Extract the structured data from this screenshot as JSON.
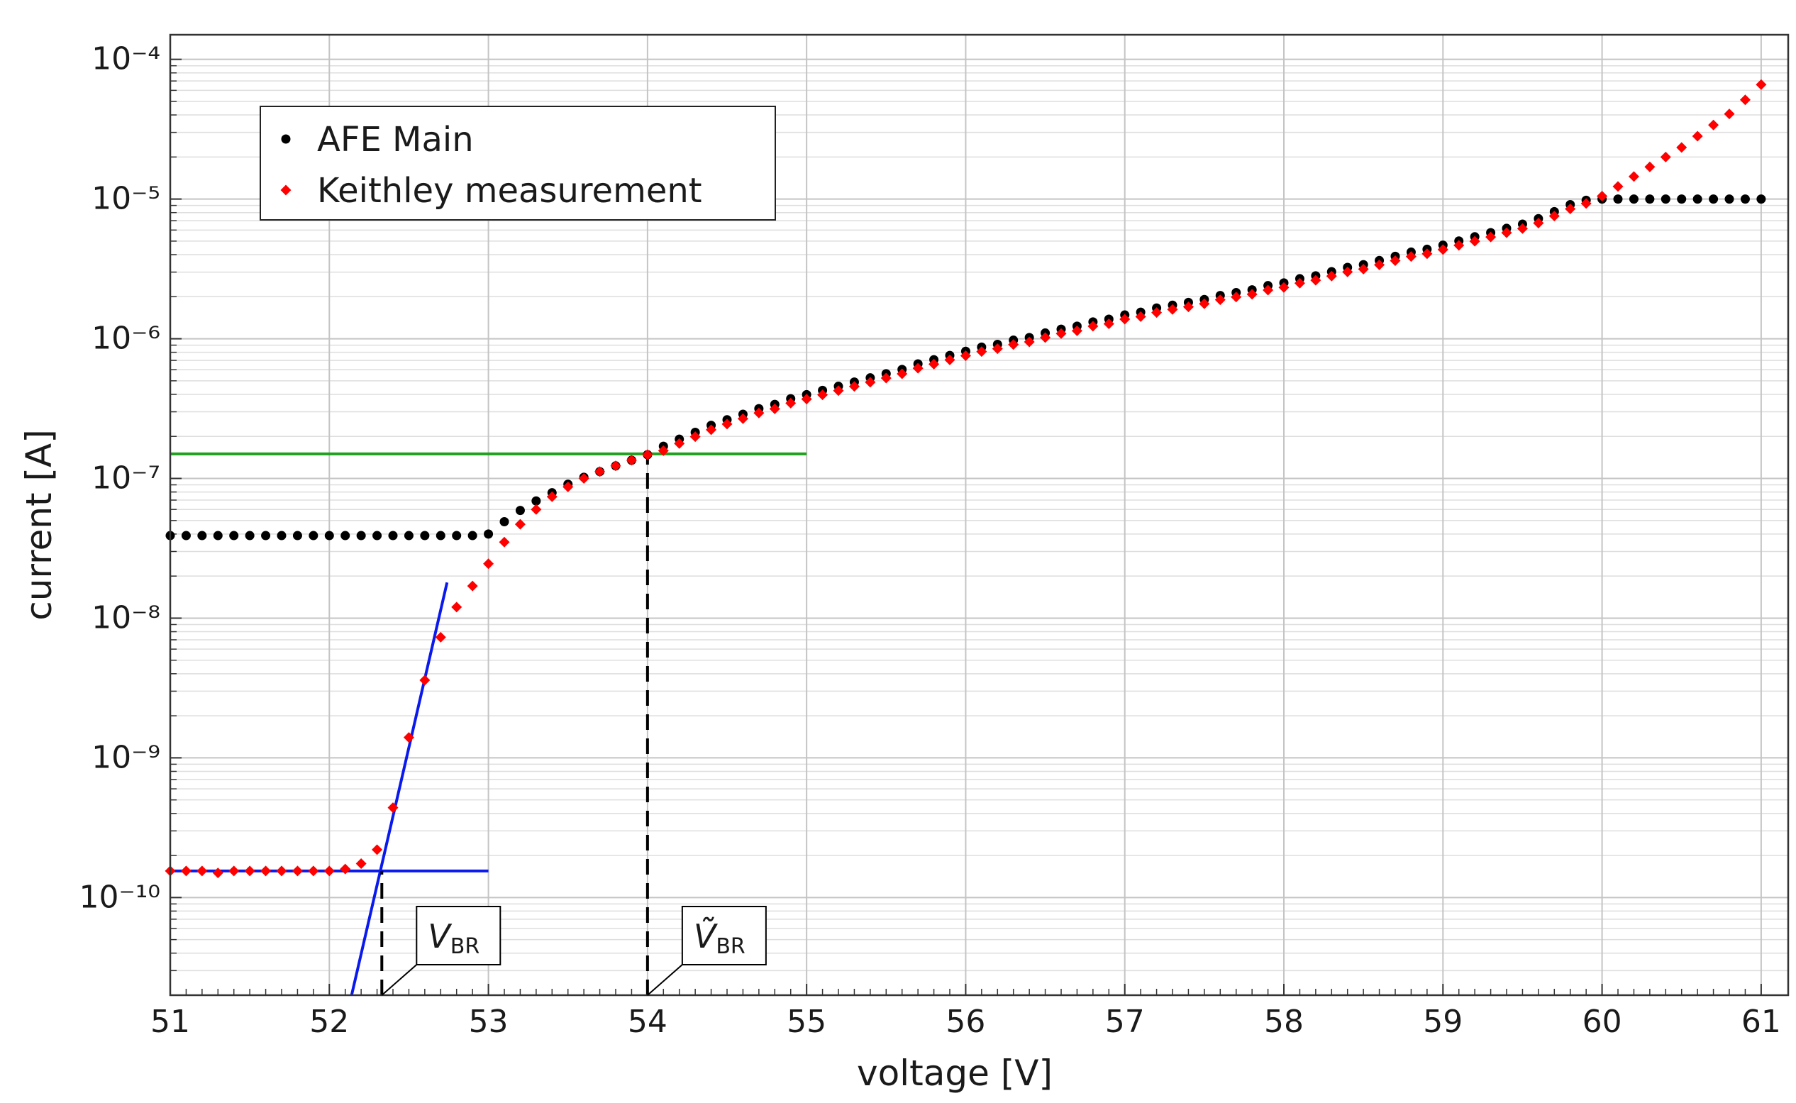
{
  "chart_data": {
    "type": "scatter",
    "x_label": "voltage [V]",
    "y_label": "current [A]",
    "log_y": true,
    "grid": true,
    "legend_position": "upper left",
    "xlim": [
      51,
      61.17
    ],
    "xticks": [
      51,
      52,
      53,
      54,
      55,
      56,
      57,
      58,
      59,
      60,
      61
    ],
    "ylim": [
      2e-11,
      0.00015
    ],
    "yticks": [
      {
        "value": 1e-10,
        "label": "10⁻¹⁰"
      },
      {
        "value": 1e-09,
        "label": "10⁻⁹"
      },
      {
        "value": 1e-08,
        "label": "10⁻⁸"
      },
      {
        "value": 1e-07,
        "label": "10⁻⁷"
      },
      {
        "value": 1e-06,
        "label": "10⁻⁶"
      },
      {
        "value": 1e-05,
        "label": "10⁻⁵"
      },
      {
        "value": 0.0001,
        "label": "10⁻⁴"
      }
    ],
    "x": [
      51.0,
      51.1,
      51.2,
      51.3,
      51.4,
      51.5,
      51.6,
      51.7,
      51.8,
      51.9,
      52.0,
      52.1,
      52.2,
      52.3,
      52.4,
      52.5,
      52.6,
      52.7,
      52.8,
      52.9,
      53.0,
      53.1,
      53.2,
      53.3,
      53.4,
      53.5,
      53.6,
      53.7,
      53.8,
      53.9,
      54.0,
      54.1,
      54.2,
      54.3,
      54.4,
      54.5,
      54.6,
      54.7,
      54.8,
      54.9,
      55.0,
      55.1,
      55.2,
      55.3,
      55.4,
      55.5,
      55.6,
      55.7,
      55.8,
      55.9,
      56.0,
      56.1,
      56.2,
      56.3,
      56.4,
      56.5,
      56.6,
      56.7,
      56.8,
      56.9,
      57.0,
      57.1,
      57.2,
      57.3,
      57.4,
      57.5,
      57.6,
      57.7,
      57.8,
      57.9,
      58.0,
      58.1,
      58.2,
      58.3,
      58.4,
      58.5,
      58.6,
      58.7,
      58.8,
      58.9,
      59.0,
      59.1,
      59.2,
      59.3,
      59.4,
      59.5,
      59.6,
      59.7,
      59.8,
      59.9,
      60.0,
      60.1,
      60.2,
      60.3,
      60.4,
      60.5,
      60.6,
      60.7,
      60.8,
      60.9,
      61.0
    ],
    "series": [
      {
        "name": "AFE Main",
        "color": "#000000",
        "marker": "circle",
        "values": [
          3.9e-08,
          3.9e-08,
          3.9e-08,
          3.9e-08,
          3.9e-08,
          3.9e-08,
          3.9e-08,
          3.9e-08,
          3.9e-08,
          3.9e-08,
          3.9e-08,
          3.9e-08,
          3.9e-08,
          3.9e-08,
          3.9e-08,
          3.9e-08,
          3.9e-08,
          3.9e-08,
          3.9e-08,
          3.9e-08,
          4e-08,
          4.9e-08,
          5.9e-08,
          6.9e-08,
          7.9e-08,
          9.1e-08,
          1.02e-07,
          1.12e-07,
          1.23e-07,
          1.35e-07,
          1.48e-07,
          1.7e-07,
          1.91e-07,
          2.14e-07,
          2.4e-07,
          2.63e-07,
          2.88e-07,
          3.16e-07,
          3.39e-07,
          3.72e-07,
          3.98e-07,
          4.27e-07,
          4.57e-07,
          4.9e-07,
          5.25e-07,
          5.62e-07,
          6.03e-07,
          6.61e-07,
          7.08e-07,
          7.59e-07,
          8.13e-07,
          8.71e-07,
          9.12e-07,
          9.77e-07,
          1.02e-06,
          1.1e-06,
          1.17e-06,
          1.23e-06,
          1.32e-06,
          1.38e-06,
          1.48e-06,
          1.55e-06,
          1.66e-06,
          1.74e-06,
          1.82e-06,
          1.91e-06,
          2.04e-06,
          2.14e-06,
          2.24e-06,
          2.4e-06,
          2.51e-06,
          2.69e-06,
          2.82e-06,
          3.02e-06,
          3.24e-06,
          3.39e-06,
          3.63e-06,
          3.89e-06,
          4.17e-06,
          4.37e-06,
          4.68e-06,
          5.01e-06,
          5.37e-06,
          5.75e-06,
          6.17e-06,
          6.61e-06,
          7.24e-06,
          8.13e-06,
          9.12e-06,
          9.8e-06,
          1e-05,
          1e-05,
          1e-05,
          1e-05,
          1e-05,
          1e-05,
          1e-05,
          1e-05,
          1e-05,
          1e-05,
          1e-05
        ]
      },
      {
        "name": "Keithley measurement",
        "color": "#ff0000",
        "marker": "diamond",
        "values": [
          1.55e-10,
          1.55e-10,
          1.55e-10,
          1.5e-10,
          1.55e-10,
          1.55e-10,
          1.55e-10,
          1.55e-10,
          1.55e-10,
          1.55e-10,
          1.55e-10,
          1.6e-10,
          1.75e-10,
          2.2e-10,
          4.4e-10,
          1.4e-09,
          3.6e-09,
          7.3e-09,
          1.2e-08,
          1.7e-08,
          2.45e-08,
          3.5e-08,
          4.7e-08,
          6e-08,
          7.4e-08,
          8.7e-08,
          1e-07,
          1.12e-07,
          1.23e-07,
          1.35e-07,
          1.48e-07,
          1.58e-07,
          1.78e-07,
          1.99e-07,
          2.23e-07,
          2.45e-07,
          2.68e-07,
          2.94e-07,
          3.15e-07,
          3.46e-07,
          3.7e-07,
          3.97e-07,
          4.25e-07,
          4.56e-07,
          4.88e-07,
          5.23e-07,
          5.61e-07,
          6.15e-07,
          6.58e-07,
          7.06e-07,
          7.56e-07,
          8.1e-07,
          8.48e-07,
          9.09e-07,
          9.49e-07,
          1.02e-06,
          1.09e-06,
          1.14e-06,
          1.23e-06,
          1.28e-06,
          1.38e-06,
          1.44e-06,
          1.54e-06,
          1.62e-06,
          1.69e-06,
          1.78e-06,
          1.9e-06,
          1.99e-06,
          2.08e-06,
          2.23e-06,
          2.33e-06,
          2.5e-06,
          2.62e-06,
          2.81e-06,
          3.01e-06,
          3.15e-06,
          3.38e-06,
          3.62e-06,
          3.88e-06,
          4.06e-06,
          4.35e-06,
          4.66e-06,
          4.99e-06,
          5.35e-06,
          5.74e-06,
          6.15e-06,
          6.73e-06,
          7.56e-06,
          8.5e-06,
          9.3e-06,
          1.05e-05,
          1.23e-05,
          1.45e-05,
          1.7e-05,
          2e-05,
          2.34e-05,
          2.82e-05,
          3.39e-05,
          4.07e-05,
          5.13e-05,
          6.6e-05
        ]
      }
    ],
    "lines": [
      {
        "x": [
          51,
          55
        ],
        "y": [
          1.5e-07,
          1.5e-07
        ],
        "color": "#1fa01f",
        "dashed": false
      },
      {
        "x": [
          54,
          54
        ],
        "y": [
          2e-11,
          1.5e-07
        ],
        "color": "#000000",
        "dashed": true
      },
      {
        "x": [
          51,
          53
        ],
        "y": [
          1.55e-10,
          1.55e-10
        ],
        "color": "#0a1aee",
        "dashed": false
      },
      {
        "x": [
          52.14,
          52.74
        ],
        "y": [
          2e-11,
          1.8e-08
        ],
        "color": "#0a1aee",
        "dashed": false
      },
      {
        "x": [
          52.33,
          52.33
        ],
        "y": [
          2e-11,
          1.55e-10
        ],
        "color": "#000000",
        "dashed": true
      }
    ],
    "annotations": [
      {
        "text": "V",
        "subscript": "BR",
        "x": 52.33
      },
      {
        "text": "Ṽ",
        "subscript": "BR",
        "x": 54
      }
    ]
  }
}
